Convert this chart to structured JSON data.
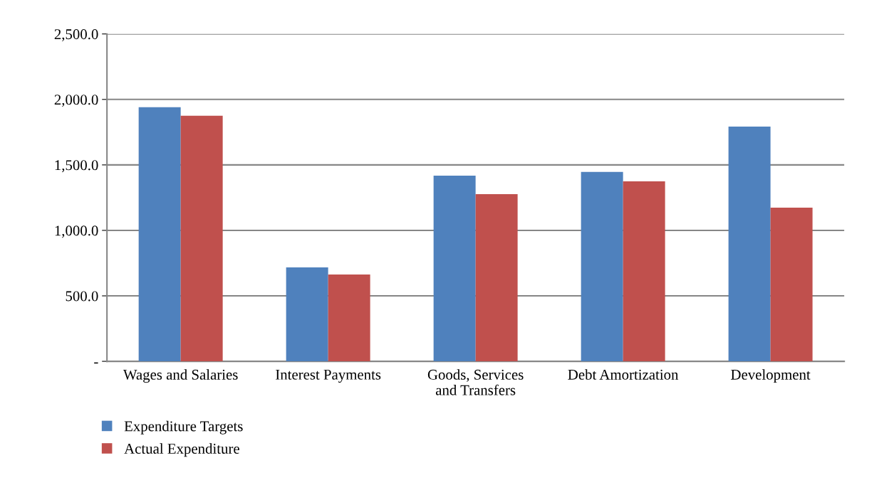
{
  "chart_data": {
    "type": "bar",
    "categories": [
      "Wages and Salaries",
      "Interest Payments",
      "Goods, Services\nand Transfers",
      "Debt Amortization",
      "Development"
    ],
    "series": [
      {
        "name": "Expenditure Targets",
        "color": "#4f81bd",
        "values": [
          1940,
          717,
          1418,
          1446,
          1793
        ]
      },
      {
        "name": "Actual Expenditure",
        "color": "#c0504d",
        "values": [
          1875,
          663,
          1277,
          1375,
          1174
        ]
      }
    ],
    "ylim": [
      0,
      2500
    ],
    "yticks": [
      {
        "value": 0,
        "label": "-"
      },
      {
        "value": 500,
        "label": "500.0"
      },
      {
        "value": 1000,
        "label": "1,000.0"
      },
      {
        "value": 1500,
        "label": "1,500.0"
      },
      {
        "value": 2000,
        "label": "2,000.0"
      },
      {
        "value": 2500,
        "label": "2,500.0"
      }
    ],
    "grid": "y",
    "legend": "bottom left"
  }
}
